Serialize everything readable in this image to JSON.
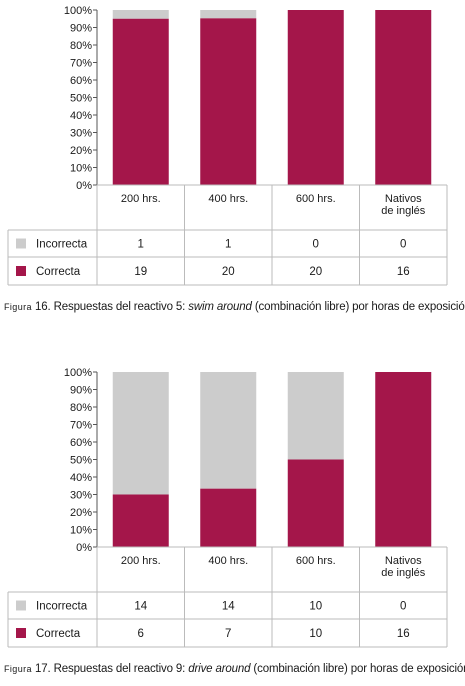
{
  "colors": {
    "correcta": "#A4164A",
    "incorrecta": "#CCCCCC",
    "grid": "#BBBBBB"
  },
  "yticks": [
    "100%",
    "90%",
    "80%",
    "70%",
    "60%",
    "50%",
    "40%",
    "30%",
    "20%",
    "10%",
    "0%"
  ],
  "figures": [
    {
      "caption": {
        "prefix": "Figura",
        "number": "16.",
        "text_before": "Respuestas del reactivo 5:",
        "italic": "swim around",
        "text_after": "(combinación libre) por horas de exposición"
      },
      "chart_data": {
        "type": "bar",
        "stacked": true,
        "percent": true,
        "categories": [
          "200 hrs.",
          "400 hrs.",
          "600 hrs.",
          "Nativos\nde inglés"
        ],
        "series": [
          {
            "name": "Incorrecta",
            "values": [
              1,
              1,
              0,
              0
            ]
          },
          {
            "name": "Correcta",
            "values": [
              19,
              20,
              20,
              16
            ]
          }
        ],
        "ylim": [
          0,
          100
        ]
      }
    },
    {
      "caption": {
        "prefix": "Figura",
        "number": "17.",
        "text_before": "Respuestas del reactivo 9:",
        "italic": "drive around",
        "text_after": "(combinación libre) por horas de exposición"
      },
      "chart_data": {
        "type": "bar",
        "stacked": true,
        "percent": true,
        "categories": [
          "200 hrs.",
          "400 hrs.",
          "600 hrs.",
          "Nativos\nde inglés"
        ],
        "series": [
          {
            "name": "Incorrecta",
            "values": [
              14,
              14,
              10,
              0
            ]
          },
          {
            "name": "Correcta",
            "values": [
              6,
              7,
              10,
              16
            ]
          }
        ],
        "ylim": [
          0,
          100
        ]
      }
    }
  ]
}
